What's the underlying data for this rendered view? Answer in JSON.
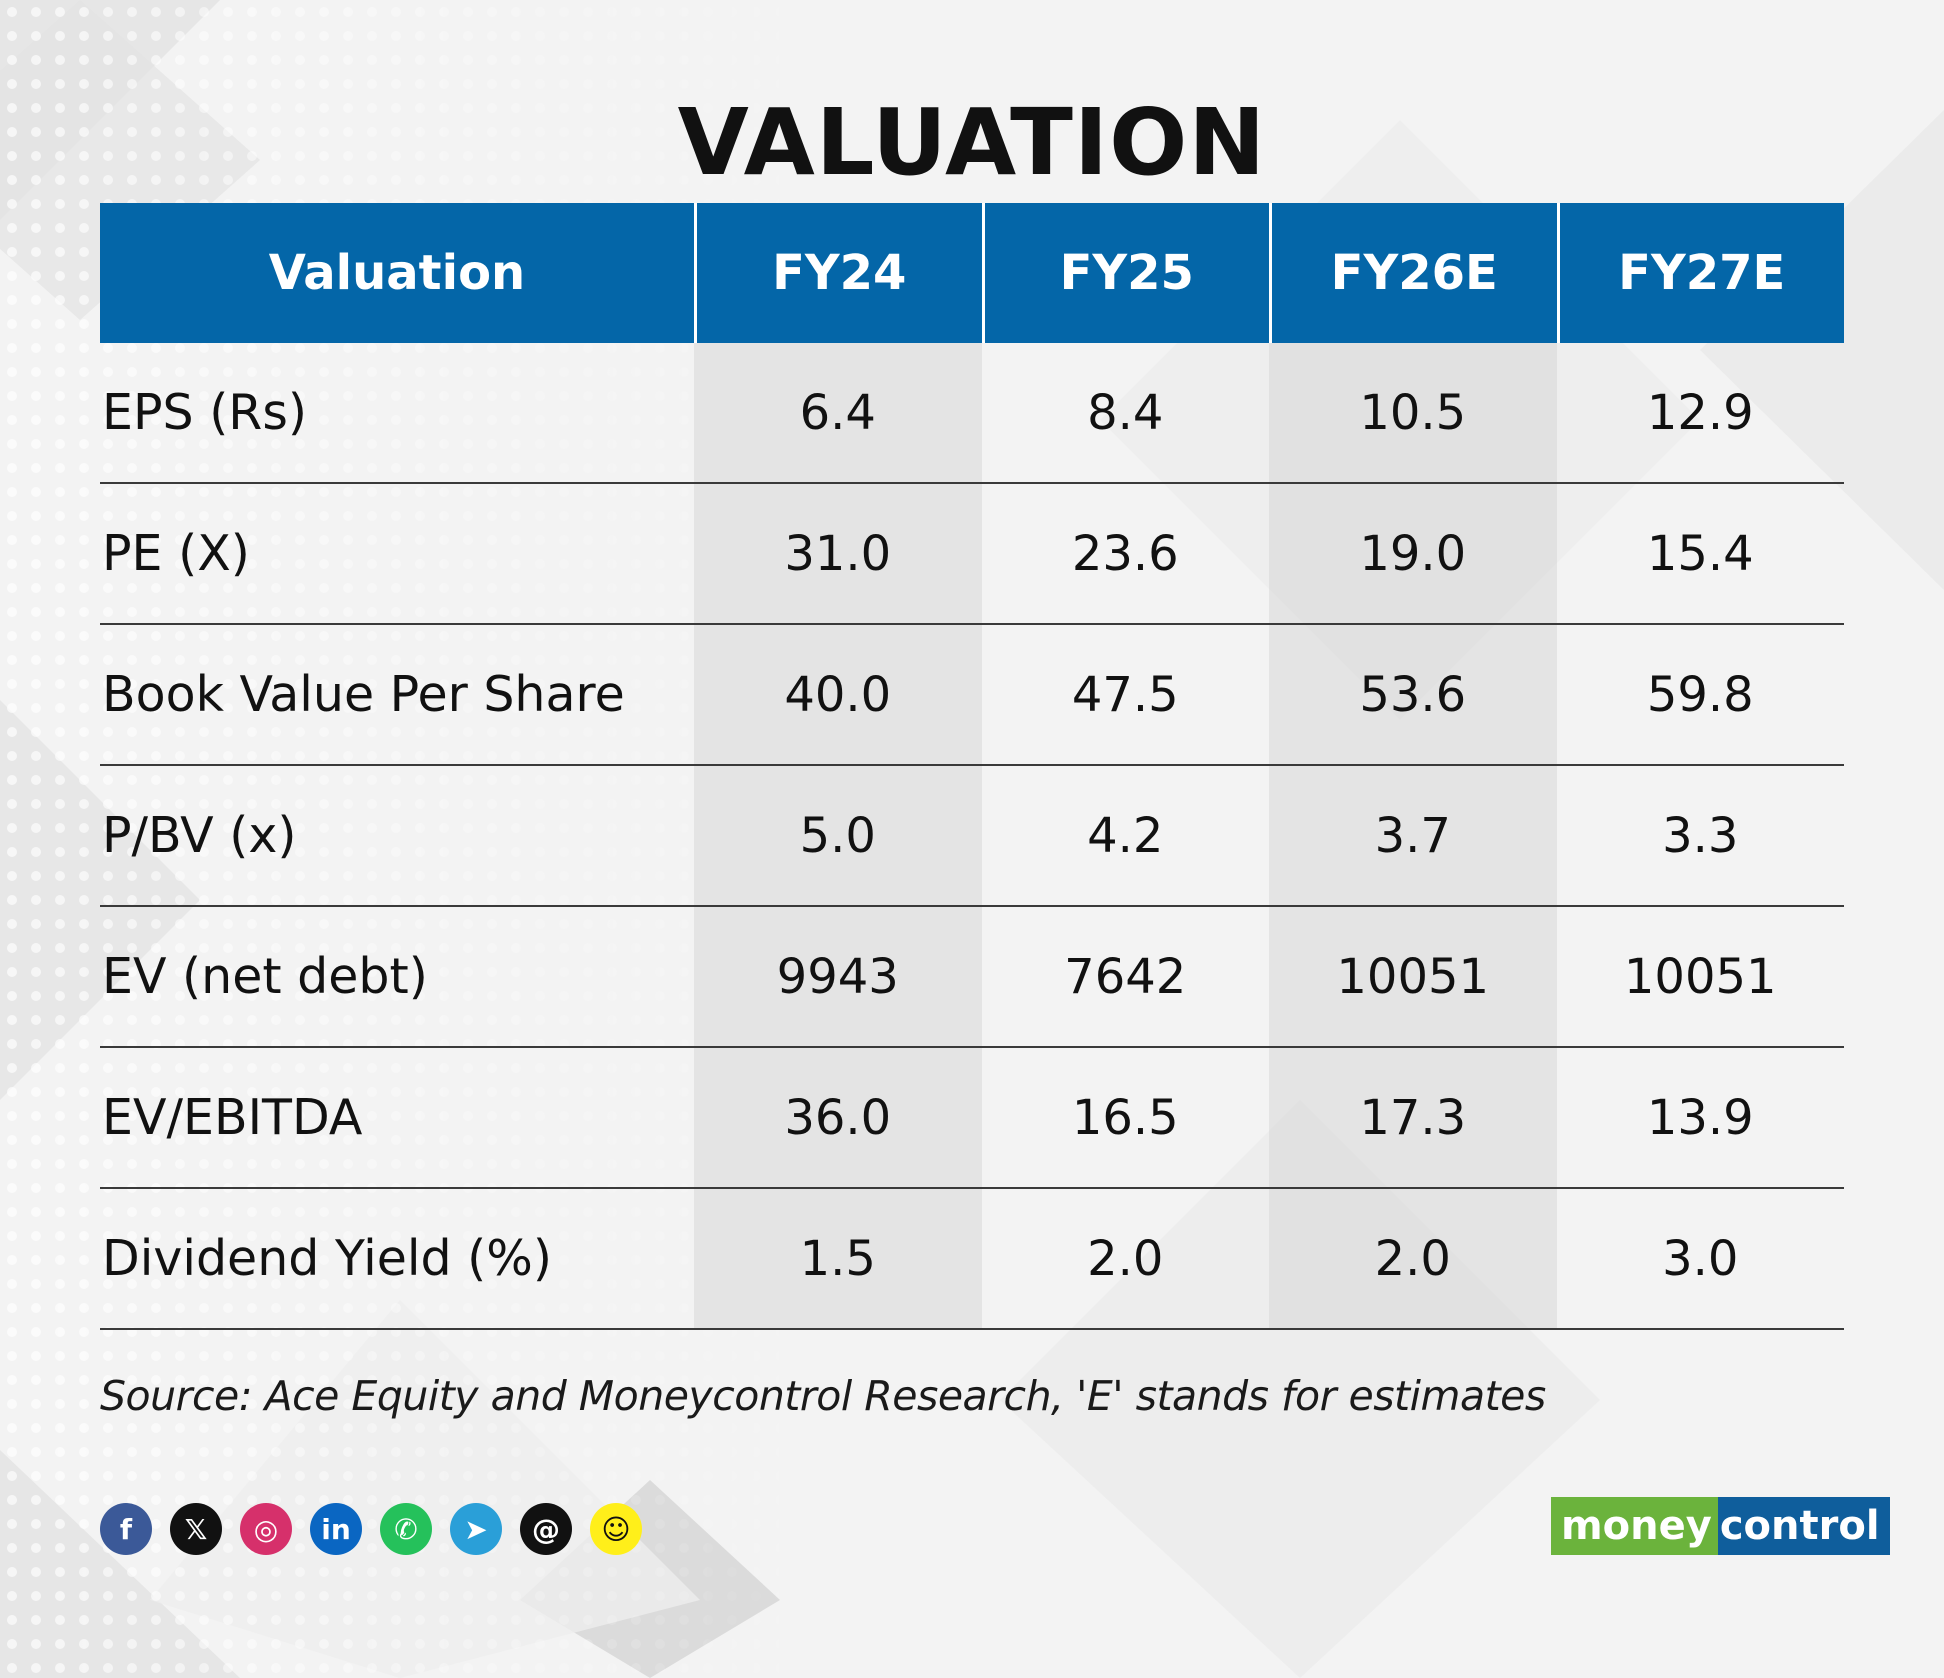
{
  "title": "VALUATION",
  "chart_data": {
    "type": "table",
    "columns": [
      "Valuation",
      "FY24",
      "FY25",
      "FY26E",
      "FY27E"
    ],
    "rows": [
      {
        "label": "EPS (Rs)",
        "values": [
          "6.4",
          "8.4",
          "10.5",
          "12.9"
        ]
      },
      {
        "label": "PE (X)",
        "values": [
          "31.0",
          "23.6",
          "19.0",
          "15.4"
        ]
      },
      {
        "label": "Book Value Per Share",
        "values": [
          "40.0",
          "47.5",
          "53.6",
          "59.8"
        ]
      },
      {
        "label": "P/BV (x)",
        "values": [
          "5.0",
          "4.2",
          "3.7",
          "3.3"
        ]
      },
      {
        "label": "EV (net debt)",
        "values": [
          "9943",
          "7642",
          "10051",
          "10051"
        ]
      },
      {
        "label": "EV/EBITDA",
        "values": [
          "36.0",
          "16.5",
          "17.3",
          "13.9"
        ]
      },
      {
        "label": "Dividend Yield (%)",
        "values": [
          "1.5",
          "2.0",
          "2.0",
          "3.0"
        ]
      }
    ]
  },
  "source": "Source: Ace Equity and Moneycontrol Research, 'E' stands for estimates",
  "social_icons": [
    {
      "name": "facebook-icon",
      "glyph": "f",
      "color": "#3b5998"
    },
    {
      "name": "x-icon",
      "glyph": "𝕏",
      "color": "#111111"
    },
    {
      "name": "instagram-icon",
      "glyph": "◎",
      "color": "#d6306b"
    },
    {
      "name": "linkedin-icon",
      "glyph": "in",
      "color": "#0a66c2"
    },
    {
      "name": "whatsapp-icon",
      "glyph": "✆",
      "color": "#25c15b"
    },
    {
      "name": "telegram-icon",
      "glyph": "➤",
      "color": "#2a9fd8"
    },
    {
      "name": "threads-icon",
      "glyph": "@",
      "color": "#111111"
    },
    {
      "name": "snapchat-icon",
      "glyph": "☺",
      "color": "#ffef1a"
    }
  ],
  "logo": {
    "part1": "money",
    "part2": "control"
  },
  "colors": {
    "header_bg": "#0466a8",
    "logo_green": "#6bb33c",
    "logo_blue": "#0f5e9c"
  }
}
